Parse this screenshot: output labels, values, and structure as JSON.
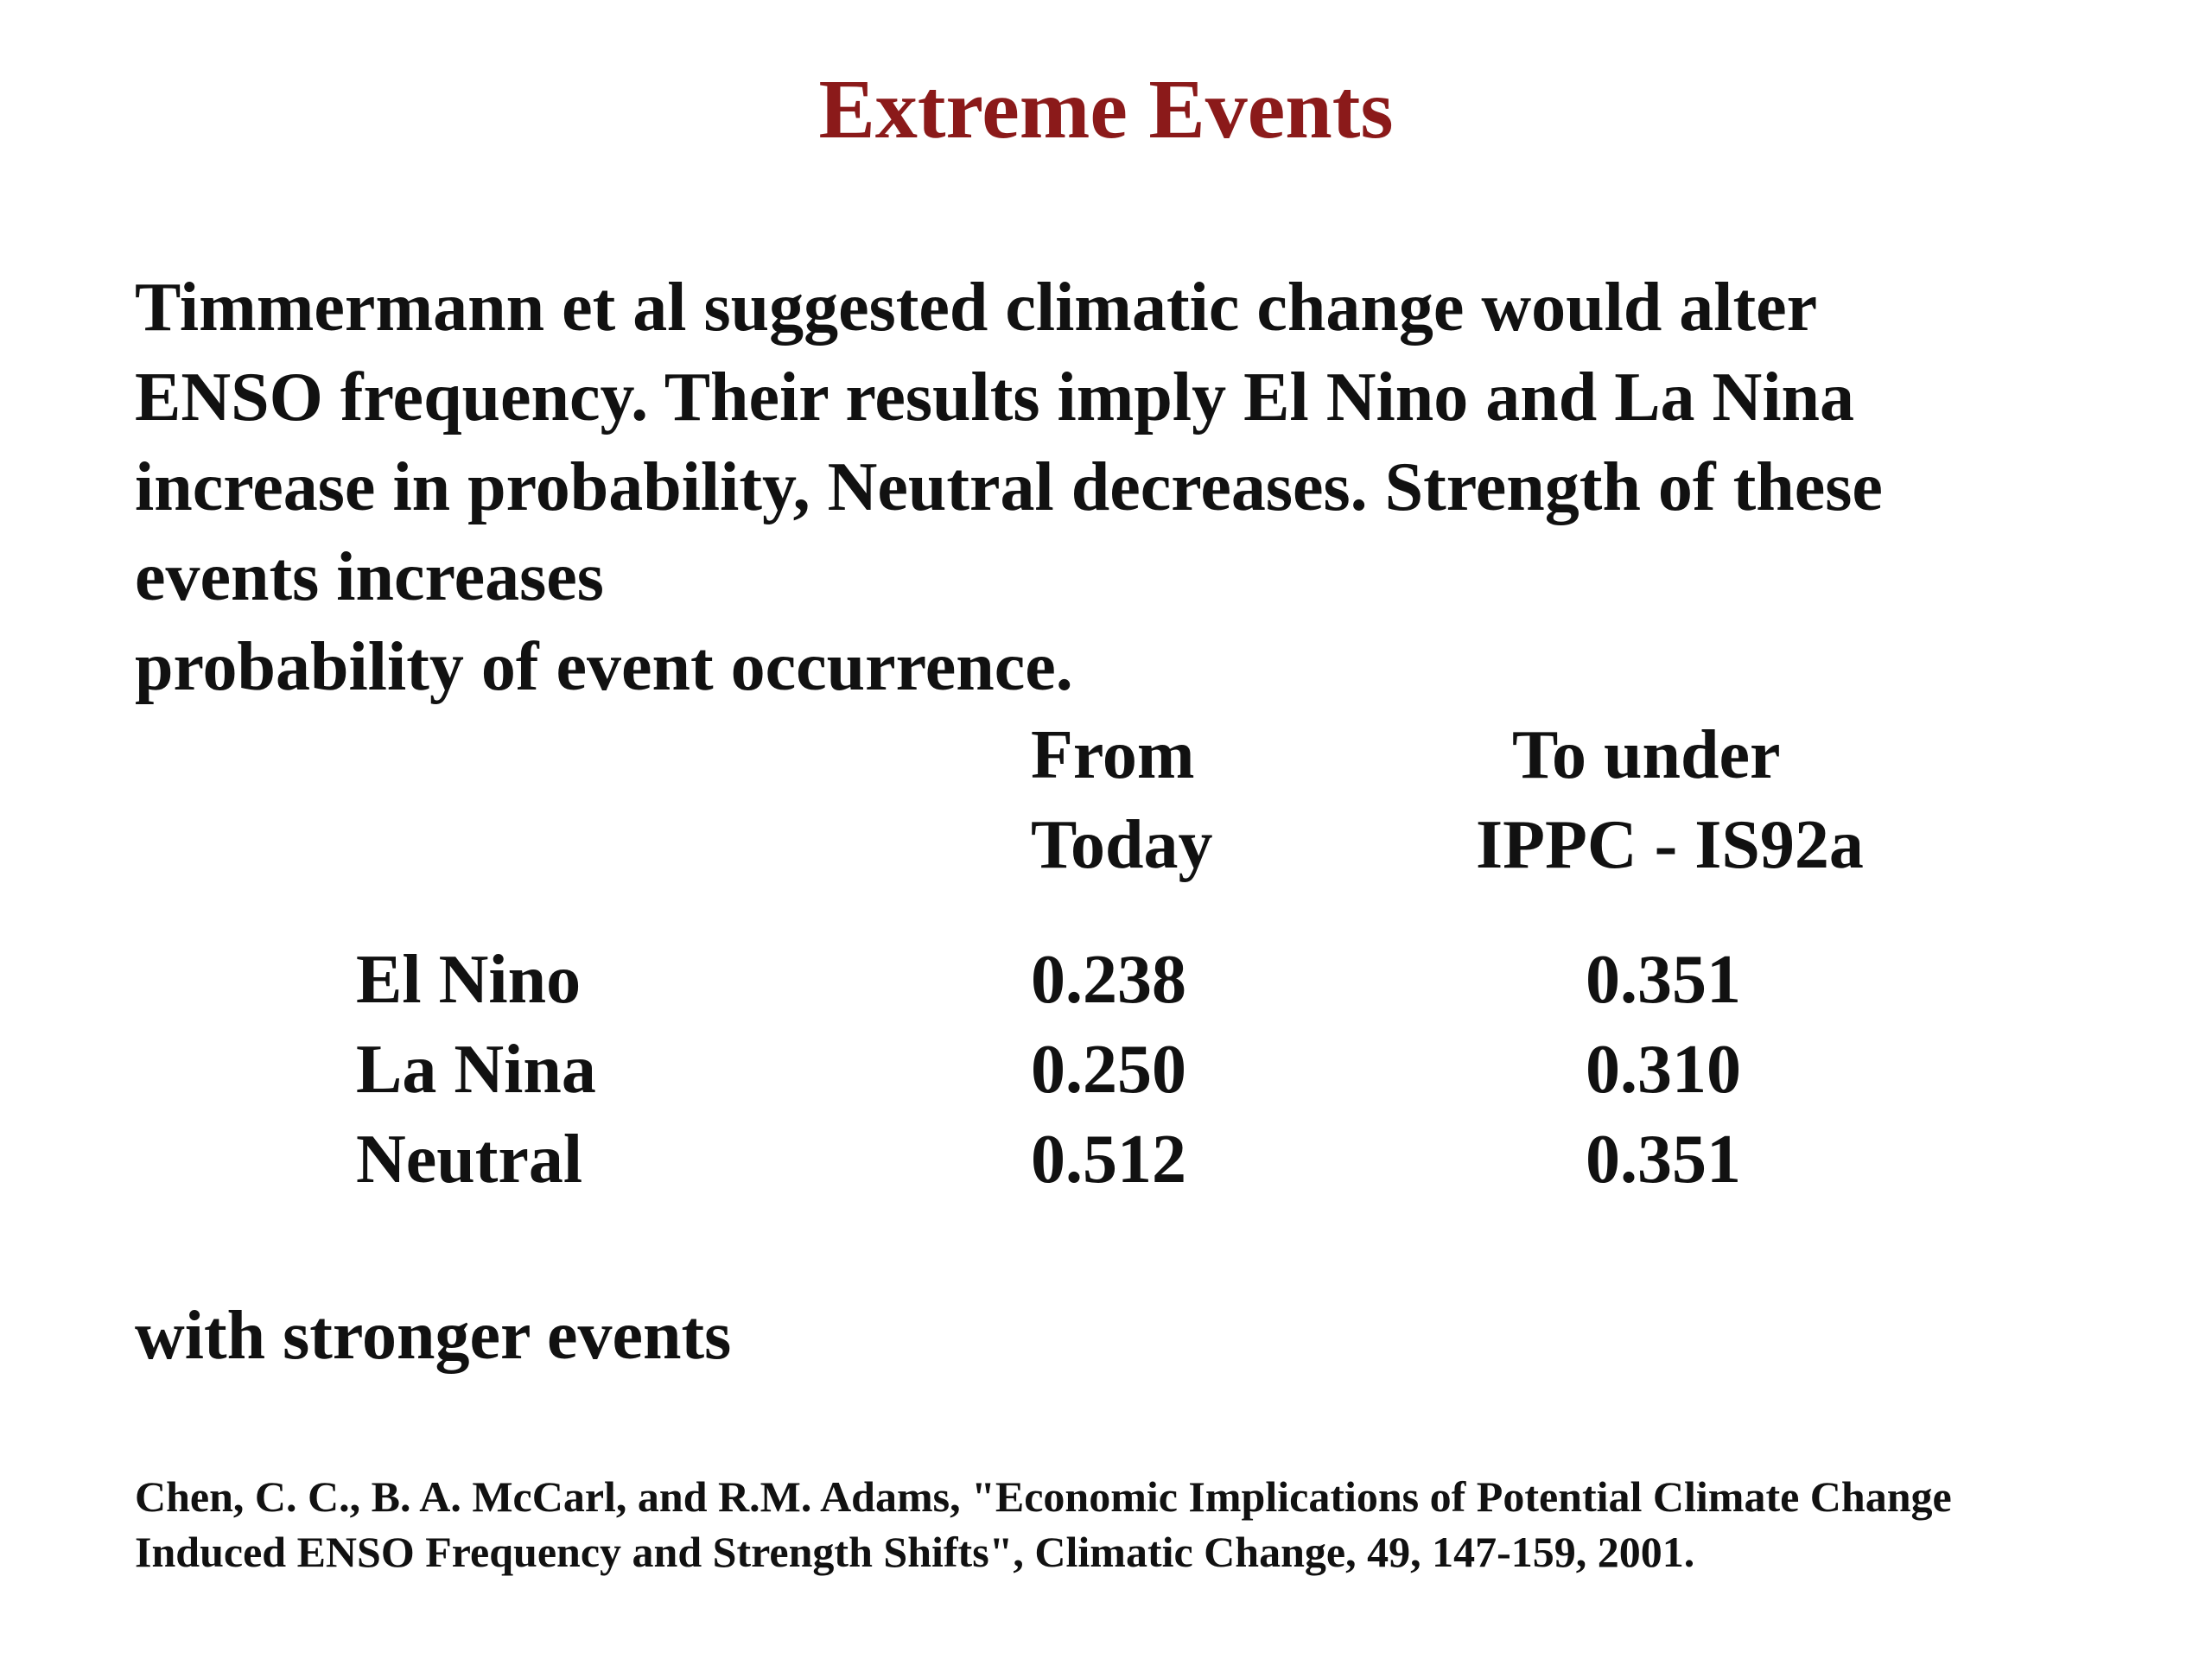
{
  "slide": {
    "title": "Extreme Events",
    "title_color": "#8b1a1a",
    "paragraph": [
      "Timmermann et al suggested climatic change would alter",
      "ENSO frequency.  Their results imply El Nino and La Nina",
      "increase in probability, Neutral decreases.  Strength of these",
      "events increases",
      "probability of event occurrence."
    ],
    "table": {
      "header_today": [
        "From",
        "Today"
      ],
      "header_future": [
        "To under",
        "IPPC - IS92a"
      ],
      "rows": [
        {
          "label": "El Nino",
          "today": "0.238",
          "future": "0.351"
        },
        {
          "label": "La Nina",
          "today": "0.250",
          "future": "0.310"
        },
        {
          "label": "Neutral",
          "today": "0.512",
          "future": "0.351"
        }
      ]
    },
    "closing": "with stronger events",
    "citation": [
      "Chen, C. C., B. A. McCarl, and R.M. Adams, \"Economic Implications of Potential Climate Change",
      "Induced ENSO Frequency and Strength Shifts\", Climatic Change, 49, 147-159, 2001."
    ]
  }
}
